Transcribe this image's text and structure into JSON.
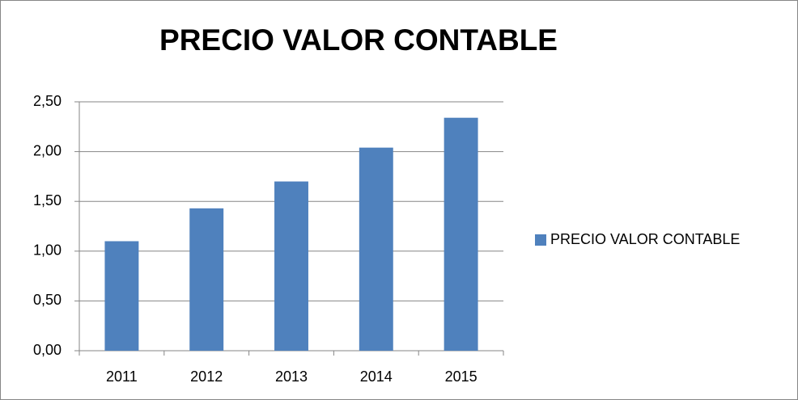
{
  "chart_data": {
    "type": "bar",
    "title": "PRECIO VALOR CONTABLE",
    "categories": [
      "2011",
      "2012",
      "2013",
      "2014",
      "2015"
    ],
    "series": [
      {
        "name": "PRECIO VALOR CONTABLE",
        "color": "#4f81bd",
        "values": [
          1.1,
          1.43,
          1.7,
          2.04,
          2.34
        ]
      }
    ],
    "ylim": [
      0,
      2.5
    ],
    "yticks": [
      {
        "value": 0,
        "label": "0,00"
      },
      {
        "value": 0.5,
        "label": "0,50"
      },
      {
        "value": 1,
        "label": "1,00"
      },
      {
        "value": 1.5,
        "label": "1,50"
      },
      {
        "value": 2,
        "label": "2,00"
      },
      {
        "value": 2.5,
        "label": "2,50"
      }
    ],
    "grid": true,
    "legend": "right"
  }
}
